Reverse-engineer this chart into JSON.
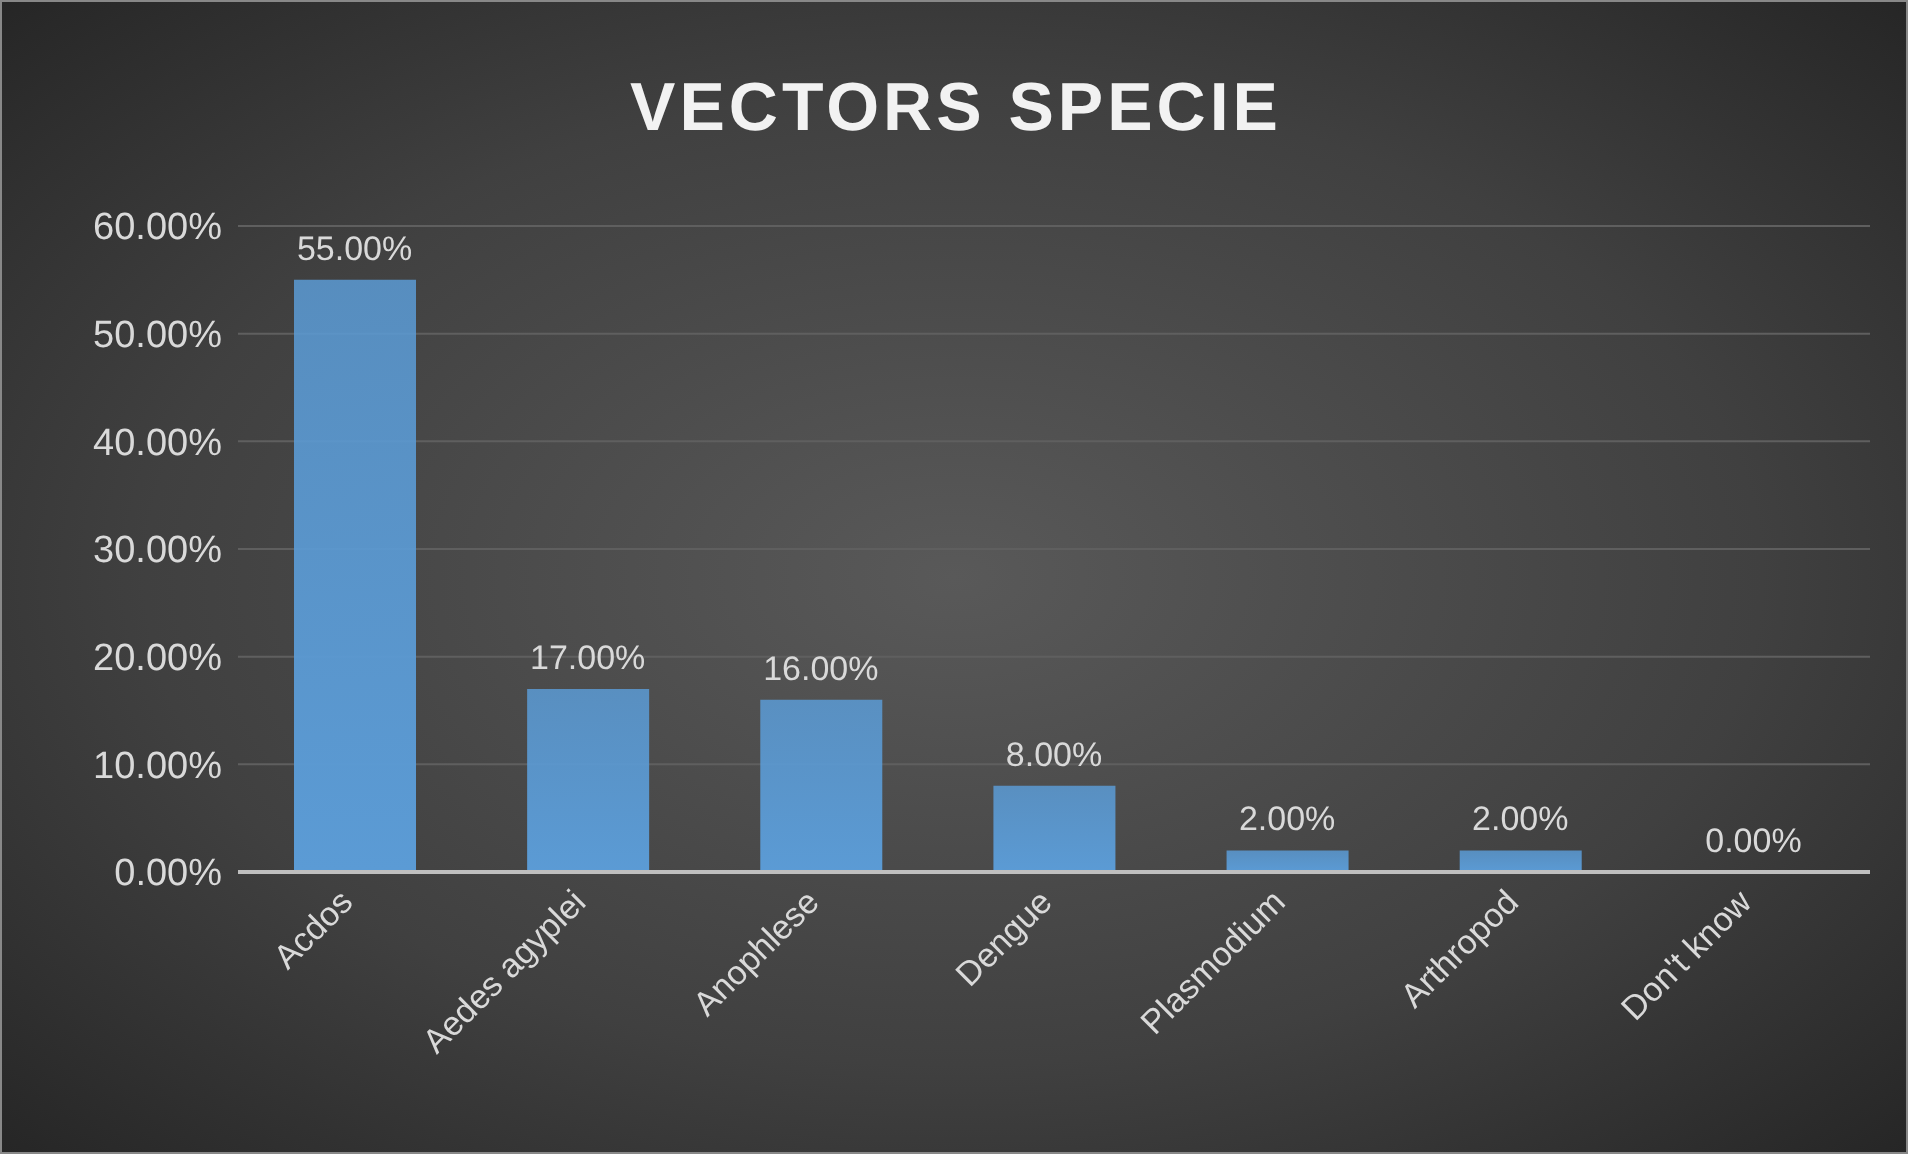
{
  "chart_data": {
    "type": "bar",
    "title": "VECTORS SPECIE",
    "categories": [
      "Acdos",
      "Aedes agyplei",
      "Anophlese",
      "Dengue",
      "Plasmodium",
      "Arthropod",
      "Don't know"
    ],
    "values": [
      55,
      17,
      16,
      8,
      2,
      2,
      0
    ],
    "value_labels": [
      "55.00%",
      "17.00%",
      "16.00%",
      "8.00%",
      "2.00%",
      "2.00%",
      "0.00%"
    ],
    "color": "#5b9bd5",
    "ylim": [
      0,
      60
    ],
    "yticks": [
      {
        "value": 0,
        "label": "0.00%"
      },
      {
        "value": 10,
        "label": "10.00%"
      },
      {
        "value": 20,
        "label": "20.00%"
      },
      {
        "value": 30,
        "label": "30.00%"
      },
      {
        "value": 40,
        "label": "40.00%"
      },
      {
        "value": 50,
        "label": "50.00%"
      },
      {
        "value": 60,
        "label": "60.00%"
      }
    ],
    "grid": "y",
    "legend": false
  }
}
